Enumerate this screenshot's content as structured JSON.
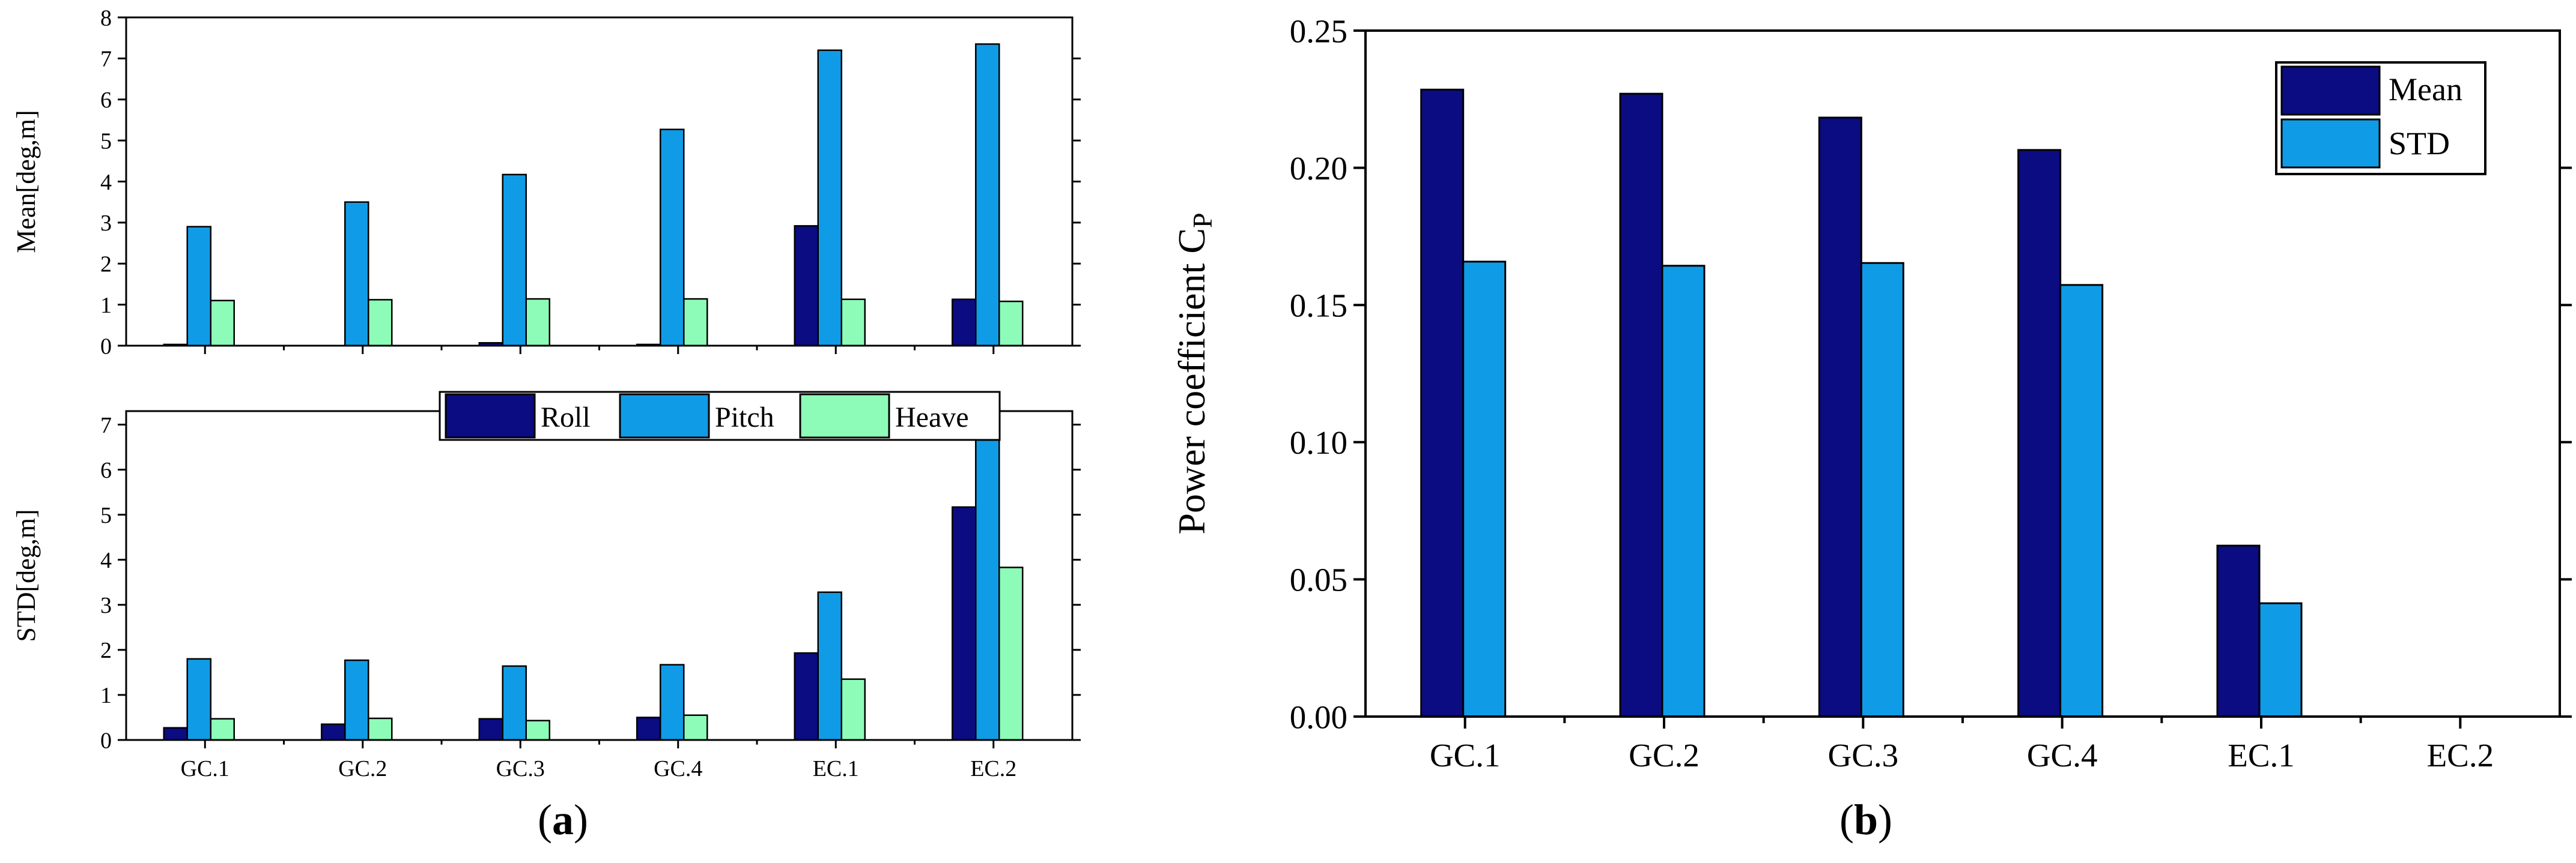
{
  "colors": {
    "roll": "#0b0b82",
    "pitch": "#109be6",
    "heave": "#8dfcb8",
    "mean": "#0b0b82",
    "std": "#109be6"
  },
  "captions": {
    "a": "a",
    "b": "b"
  },
  "chart_data": [
    {
      "id": "a-top",
      "type": "bar",
      "title": "",
      "xlabel": "",
      "ylabel": "Mean[deg,m]",
      "ylim": [
        0,
        8
      ],
      "yticks": [
        "0",
        "1",
        "2",
        "3",
        "4",
        "5",
        "6",
        "7",
        "8"
      ],
      "categories": [
        "GC.1",
        "GC.2",
        "GC.3",
        "GC.4",
        "EC.1",
        "EC.2"
      ],
      "series": [
        {
          "name": "Roll",
          "color_key": "roll",
          "values": [
            0.03,
            0.0,
            0.07,
            0.03,
            2.92,
            1.13
          ]
        },
        {
          "name": "Pitch",
          "color_key": "pitch",
          "values": [
            2.9,
            3.5,
            4.17,
            5.27,
            7.2,
            7.35
          ]
        },
        {
          "name": "Heave",
          "color_key": "heave",
          "values": [
            1.1,
            1.12,
            1.14,
            1.14,
            1.13,
            1.08
          ]
        }
      ]
    },
    {
      "id": "a-bottom",
      "type": "bar",
      "title": "",
      "xlabel": "",
      "ylabel": "STD[deg,m]",
      "ylim": [
        0,
        7.3
      ],
      "yticks": [
        "0",
        "1",
        "2",
        "3",
        "4",
        "5",
        "6",
        "7"
      ],
      "categories": [
        "GC.1",
        "GC.2",
        "GC.3",
        "GC.4",
        "EC.1",
        "EC.2"
      ],
      "legend": {
        "placement": "top",
        "entries": [
          "Roll",
          "Pitch",
          "Heave"
        ]
      },
      "series": [
        {
          "name": "Roll",
          "color_key": "roll",
          "values": [
            0.27,
            0.35,
            0.47,
            0.5,
            1.93,
            5.17
          ]
        },
        {
          "name": "Pitch",
          "color_key": "pitch",
          "values": [
            1.8,
            1.77,
            1.64,
            1.67,
            3.28,
            6.8
          ]
        },
        {
          "name": "Heave",
          "color_key": "heave",
          "values": [
            0.47,
            0.48,
            0.43,
            0.55,
            1.35,
            3.83
          ]
        }
      ]
    },
    {
      "id": "b",
      "type": "bar",
      "title": "",
      "xlabel": "",
      "ylabel": "Power coefficient C",
      "ylabel_sub": "P",
      "ylim": [
        0,
        0.25
      ],
      "yticks": [
        "0.00",
        "0.05",
        "0.10",
        "0.15",
        "0.20",
        "0.25"
      ],
      "categories": [
        "GC.1",
        "GC.2",
        "GC.3",
        "GC.4",
        "EC.1",
        "EC.2"
      ],
      "legend": {
        "placement": "top-right",
        "entries": [
          "Mean",
          "STD"
        ]
      },
      "series": [
        {
          "name": "Mean",
          "color_key": "mean",
          "values": [
            0.2285,
            0.227,
            0.2183,
            0.2065,
            0.0623,
            0.0
          ]
        },
        {
          "name": "STD",
          "color_key": "std",
          "values": [
            0.1658,
            0.1643,
            0.1653,
            0.1573,
            0.0413,
            0.0
          ]
        }
      ]
    }
  ]
}
